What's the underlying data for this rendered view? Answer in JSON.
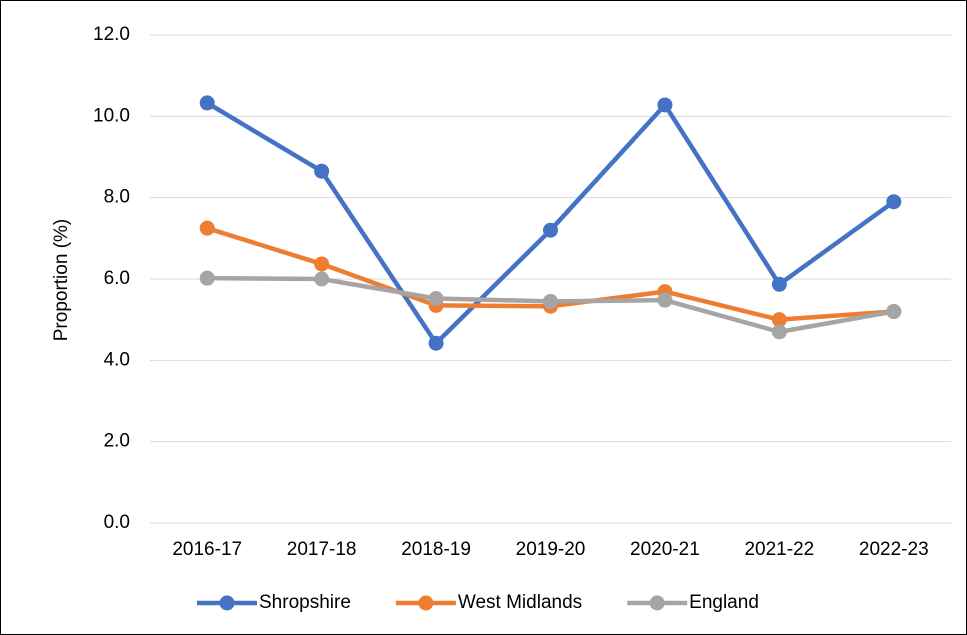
{
  "chart_data": {
    "type": "line",
    "ylabel": "Proportion (%)",
    "categories": [
      "2016-17",
      "2017-18",
      "2018-19",
      "2019-20",
      "2020-21",
      "2021-22",
      "2022-23"
    ],
    "series": [
      {
        "name": "Shropshire",
        "color": "#4472c4",
        "values": [
          10.33,
          8.65,
          4.42,
          7.2,
          10.28,
          5.87,
          7.9
        ]
      },
      {
        "name": "West Midlands",
        "color": "#ed7d31",
        "values": [
          7.25,
          6.37,
          5.35,
          5.33,
          5.69,
          5.0,
          5.2
        ]
      },
      {
        "name": "England",
        "color": "#a5a5a5",
        "values": [
          6.02,
          6.0,
          5.52,
          5.45,
          5.48,
          4.7,
          5.2
        ]
      }
    ],
    "ylim": [
      0,
      12
    ],
    "yticks": [
      {
        "value": 0,
        "label": "0.0"
      },
      {
        "value": 2,
        "label": "2.0"
      },
      {
        "value": 4,
        "label": "4.0"
      },
      {
        "value": 6,
        "label": "6.0"
      },
      {
        "value": 8,
        "label": "8.0"
      },
      {
        "value": 10,
        "label": "10.0"
      },
      {
        "value": 12,
        "label": "12.0"
      }
    ],
    "grid": true,
    "legend": "bottom"
  }
}
